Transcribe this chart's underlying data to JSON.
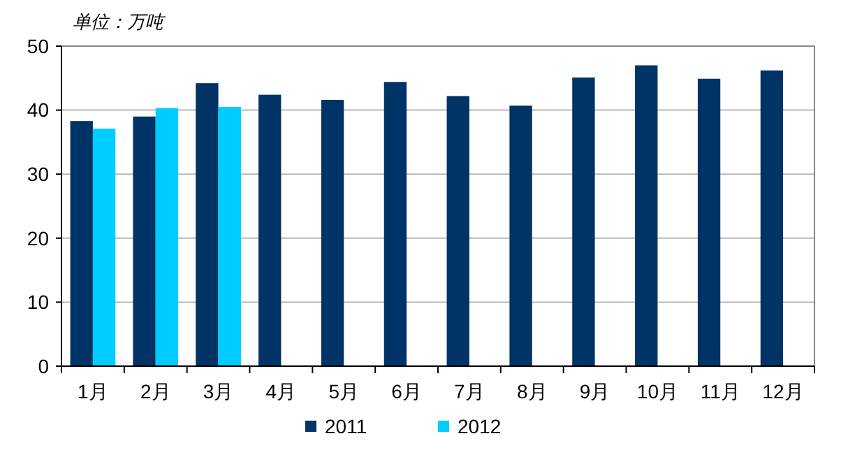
{
  "chart_data": {
    "type": "bar",
    "ylabel": "单位：万吨",
    "categories": [
      "1月",
      "2月",
      "3月",
      "4月",
      "5月",
      "6月",
      "7月",
      "8月",
      "9月",
      "10月",
      "11月",
      "12月"
    ],
    "series": [
      {
        "name": "2011",
        "color": "#003366",
        "values": [
          38.3,
          39.0,
          44.2,
          42.4,
          41.6,
          44.4,
          42.2,
          40.7,
          45.1,
          47.0,
          44.9,
          46.2
        ]
      },
      {
        "name": "2012",
        "color": "#00ccff",
        "values": [
          37.1,
          40.3,
          40.5,
          null,
          null,
          null,
          null,
          null,
          null,
          null,
          null,
          null
        ]
      }
    ],
    "ylim": [
      0,
      50
    ],
    "yticks": [
      0,
      10,
      20,
      30,
      40,
      50
    ],
    "grid": "y",
    "legend": "bottom"
  }
}
